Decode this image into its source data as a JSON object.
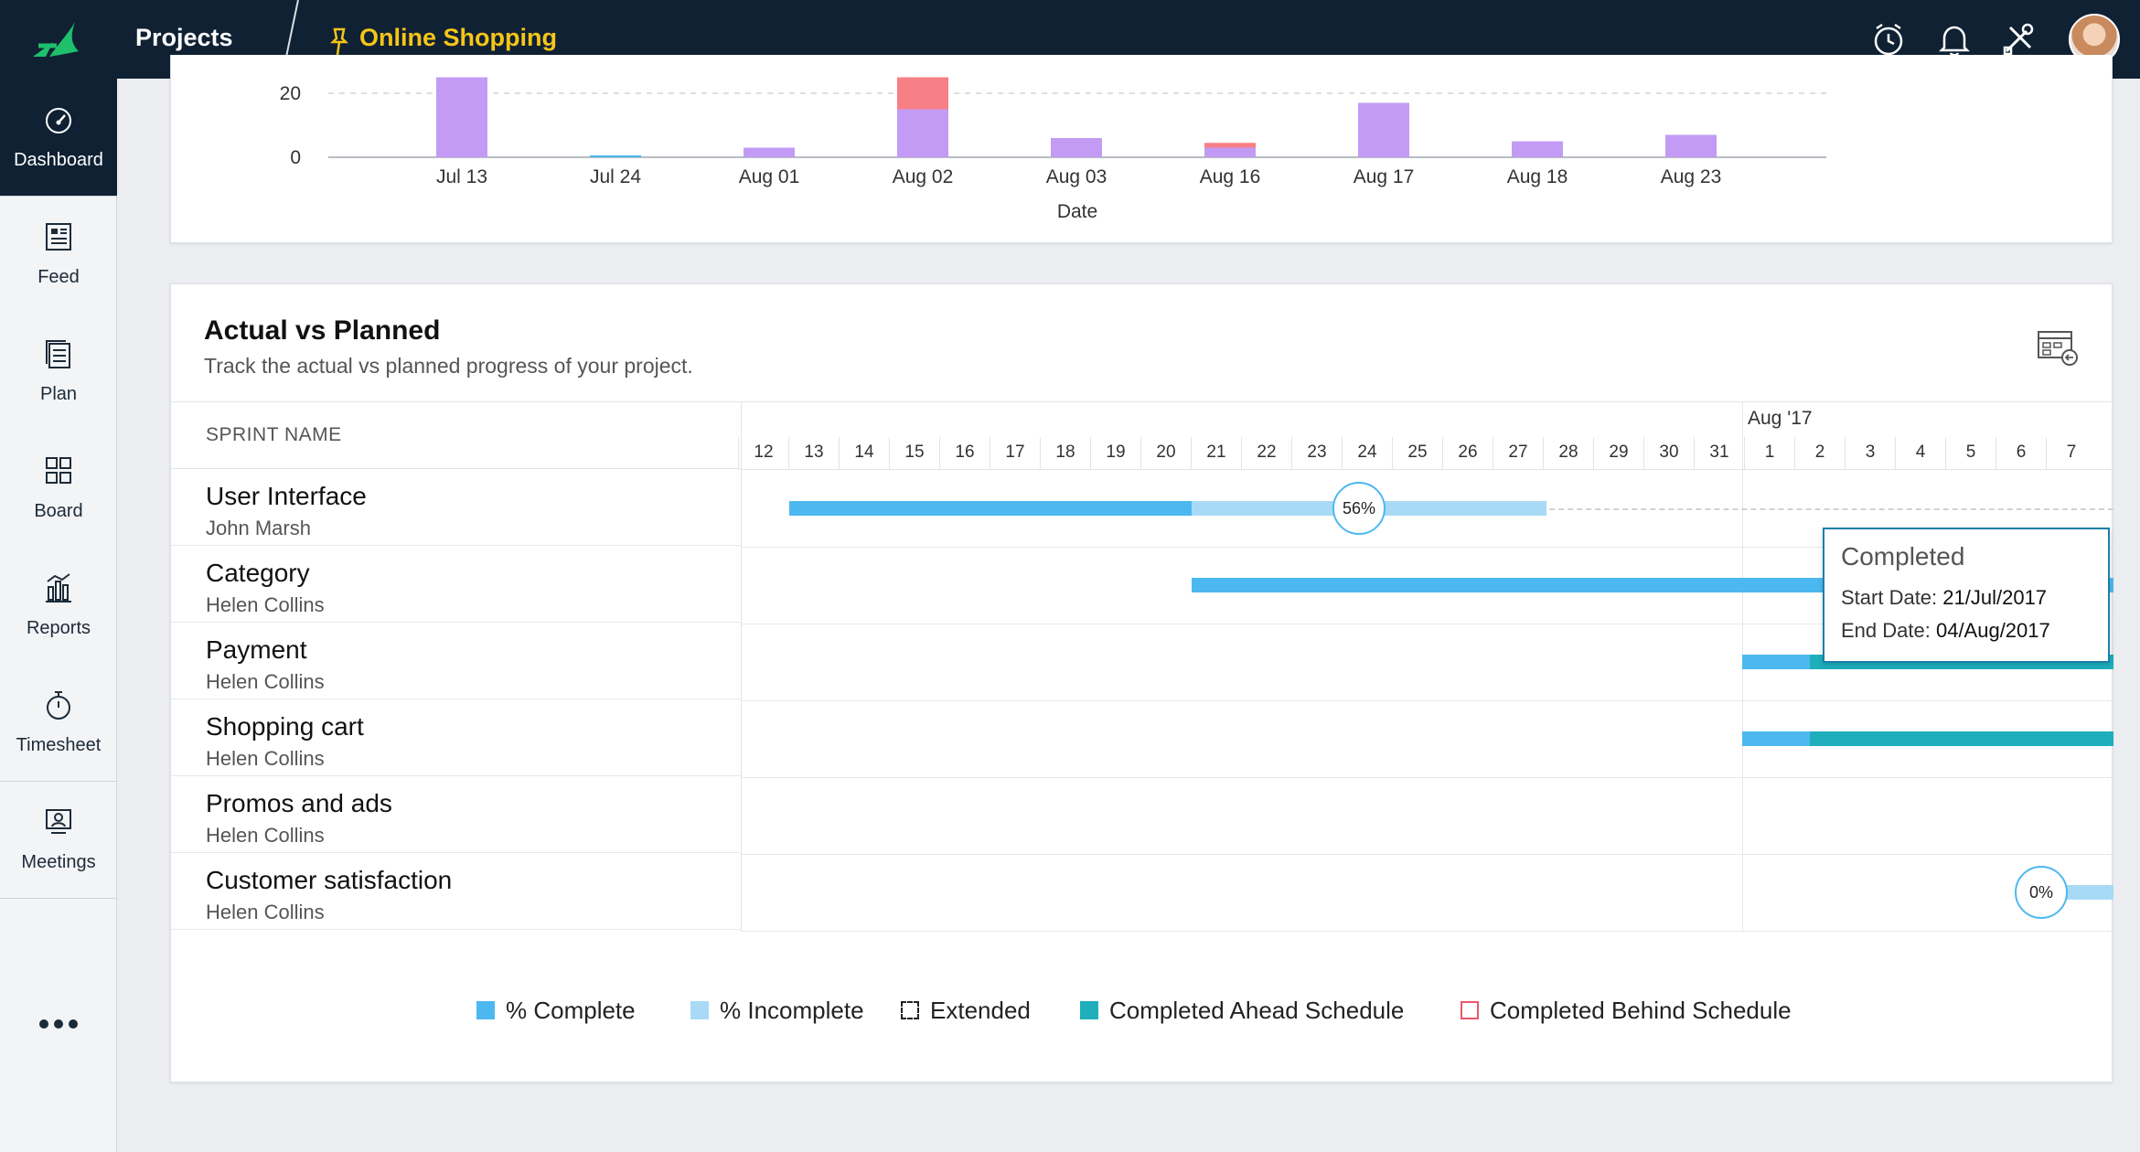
{
  "topbar": {
    "title": "Projects",
    "project_name": "Online Shopping",
    "icons": [
      "clock-icon",
      "bell-icon",
      "tools-icon",
      "avatar"
    ]
  },
  "sidebar": {
    "items": [
      {
        "label": "Dashboard",
        "icon": "dashboard-gauge-icon",
        "active": true
      },
      {
        "label": "Feed",
        "icon": "feed-icon"
      },
      {
        "label": "Plan",
        "icon": "plan-icon"
      },
      {
        "label": "Board",
        "icon": "board-icon"
      },
      {
        "label": "Reports",
        "icon": "reports-icon"
      },
      {
        "label": "Timesheet",
        "icon": "stopwatch-icon"
      },
      {
        "label": "Meetings",
        "icon": "meetings-icon"
      }
    ],
    "more": "more-icon"
  },
  "chart_data": {
    "type": "bar",
    "xlabel": "Date",
    "ylabel": "",
    "categories": [
      "Jul 13",
      "Jul 24",
      "Aug 01",
      "Aug 02",
      "Aug 03",
      "Aug 16",
      "Aug 17",
      "Aug 18",
      "Aug 23"
    ],
    "ylim": [
      0,
      25
    ],
    "yticks": [
      0,
      20
    ],
    "grid": true,
    "series": [
      {
        "color": "#c39bf5",
        "values": [
          25,
          0,
          3,
          15,
          6,
          3,
          17,
          5,
          7
        ]
      },
      {
        "color": "#f77f86",
        "values": [
          0,
          0,
          0,
          10,
          0,
          1.5,
          0,
          0,
          0
        ]
      },
      {
        "color": "#4db8f0",
        "values": [
          0,
          0.6,
          0,
          0,
          0,
          0,
          0,
          0,
          0
        ]
      }
    ]
  },
  "gantt": {
    "title": "Actual vs Planned",
    "subtitle": "Track the actual vs planned progress of your project.",
    "sprint_header": "SPRINT NAME",
    "month_label": "Aug '17",
    "days": [
      "12",
      "13",
      "14",
      "15",
      "16",
      "17",
      "18",
      "19",
      "20",
      "21",
      "22",
      "23",
      "24",
      "25",
      "26",
      "27",
      "28",
      "29",
      "30",
      "31",
      "1",
      "2",
      "3",
      "4",
      "5",
      "6",
      "7"
    ],
    "sprints": [
      {
        "name": "User Interface",
        "owner": "John Marsh",
        "percent": "56%"
      },
      {
        "name": "Category",
        "owner": "Helen Collins"
      },
      {
        "name": "Payment",
        "owner": "Helen Collins"
      },
      {
        "name": "Shopping cart",
        "owner": "Helen Collins"
      },
      {
        "name": "Promos and ads",
        "owner": "Helen Collins"
      },
      {
        "name": "Customer satisfaction",
        "owner": "Helen Collins",
        "percent": "0%"
      }
    ],
    "tooltip": {
      "title": "Completed",
      "start_label": "Start Date:",
      "start_value": "21/Jul/2017",
      "end_label": "End Date:",
      "end_value": "04/Aug/2017"
    },
    "colors": {
      "complete": "#4db8f0",
      "incomplete": "#a8daf5",
      "ahead": "#1eaebc",
      "behind": "#e8576a"
    }
  },
  "legend": [
    {
      "label": "% Complete",
      "style": "complete"
    },
    {
      "label": "% Incomplete",
      "style": "incomplete"
    },
    {
      "label": "Extended",
      "style": "extended"
    },
    {
      "label": "Completed Ahead Schedule",
      "style": "ahead"
    },
    {
      "label": "Completed Behind Schedule",
      "style": "behind"
    }
  ]
}
